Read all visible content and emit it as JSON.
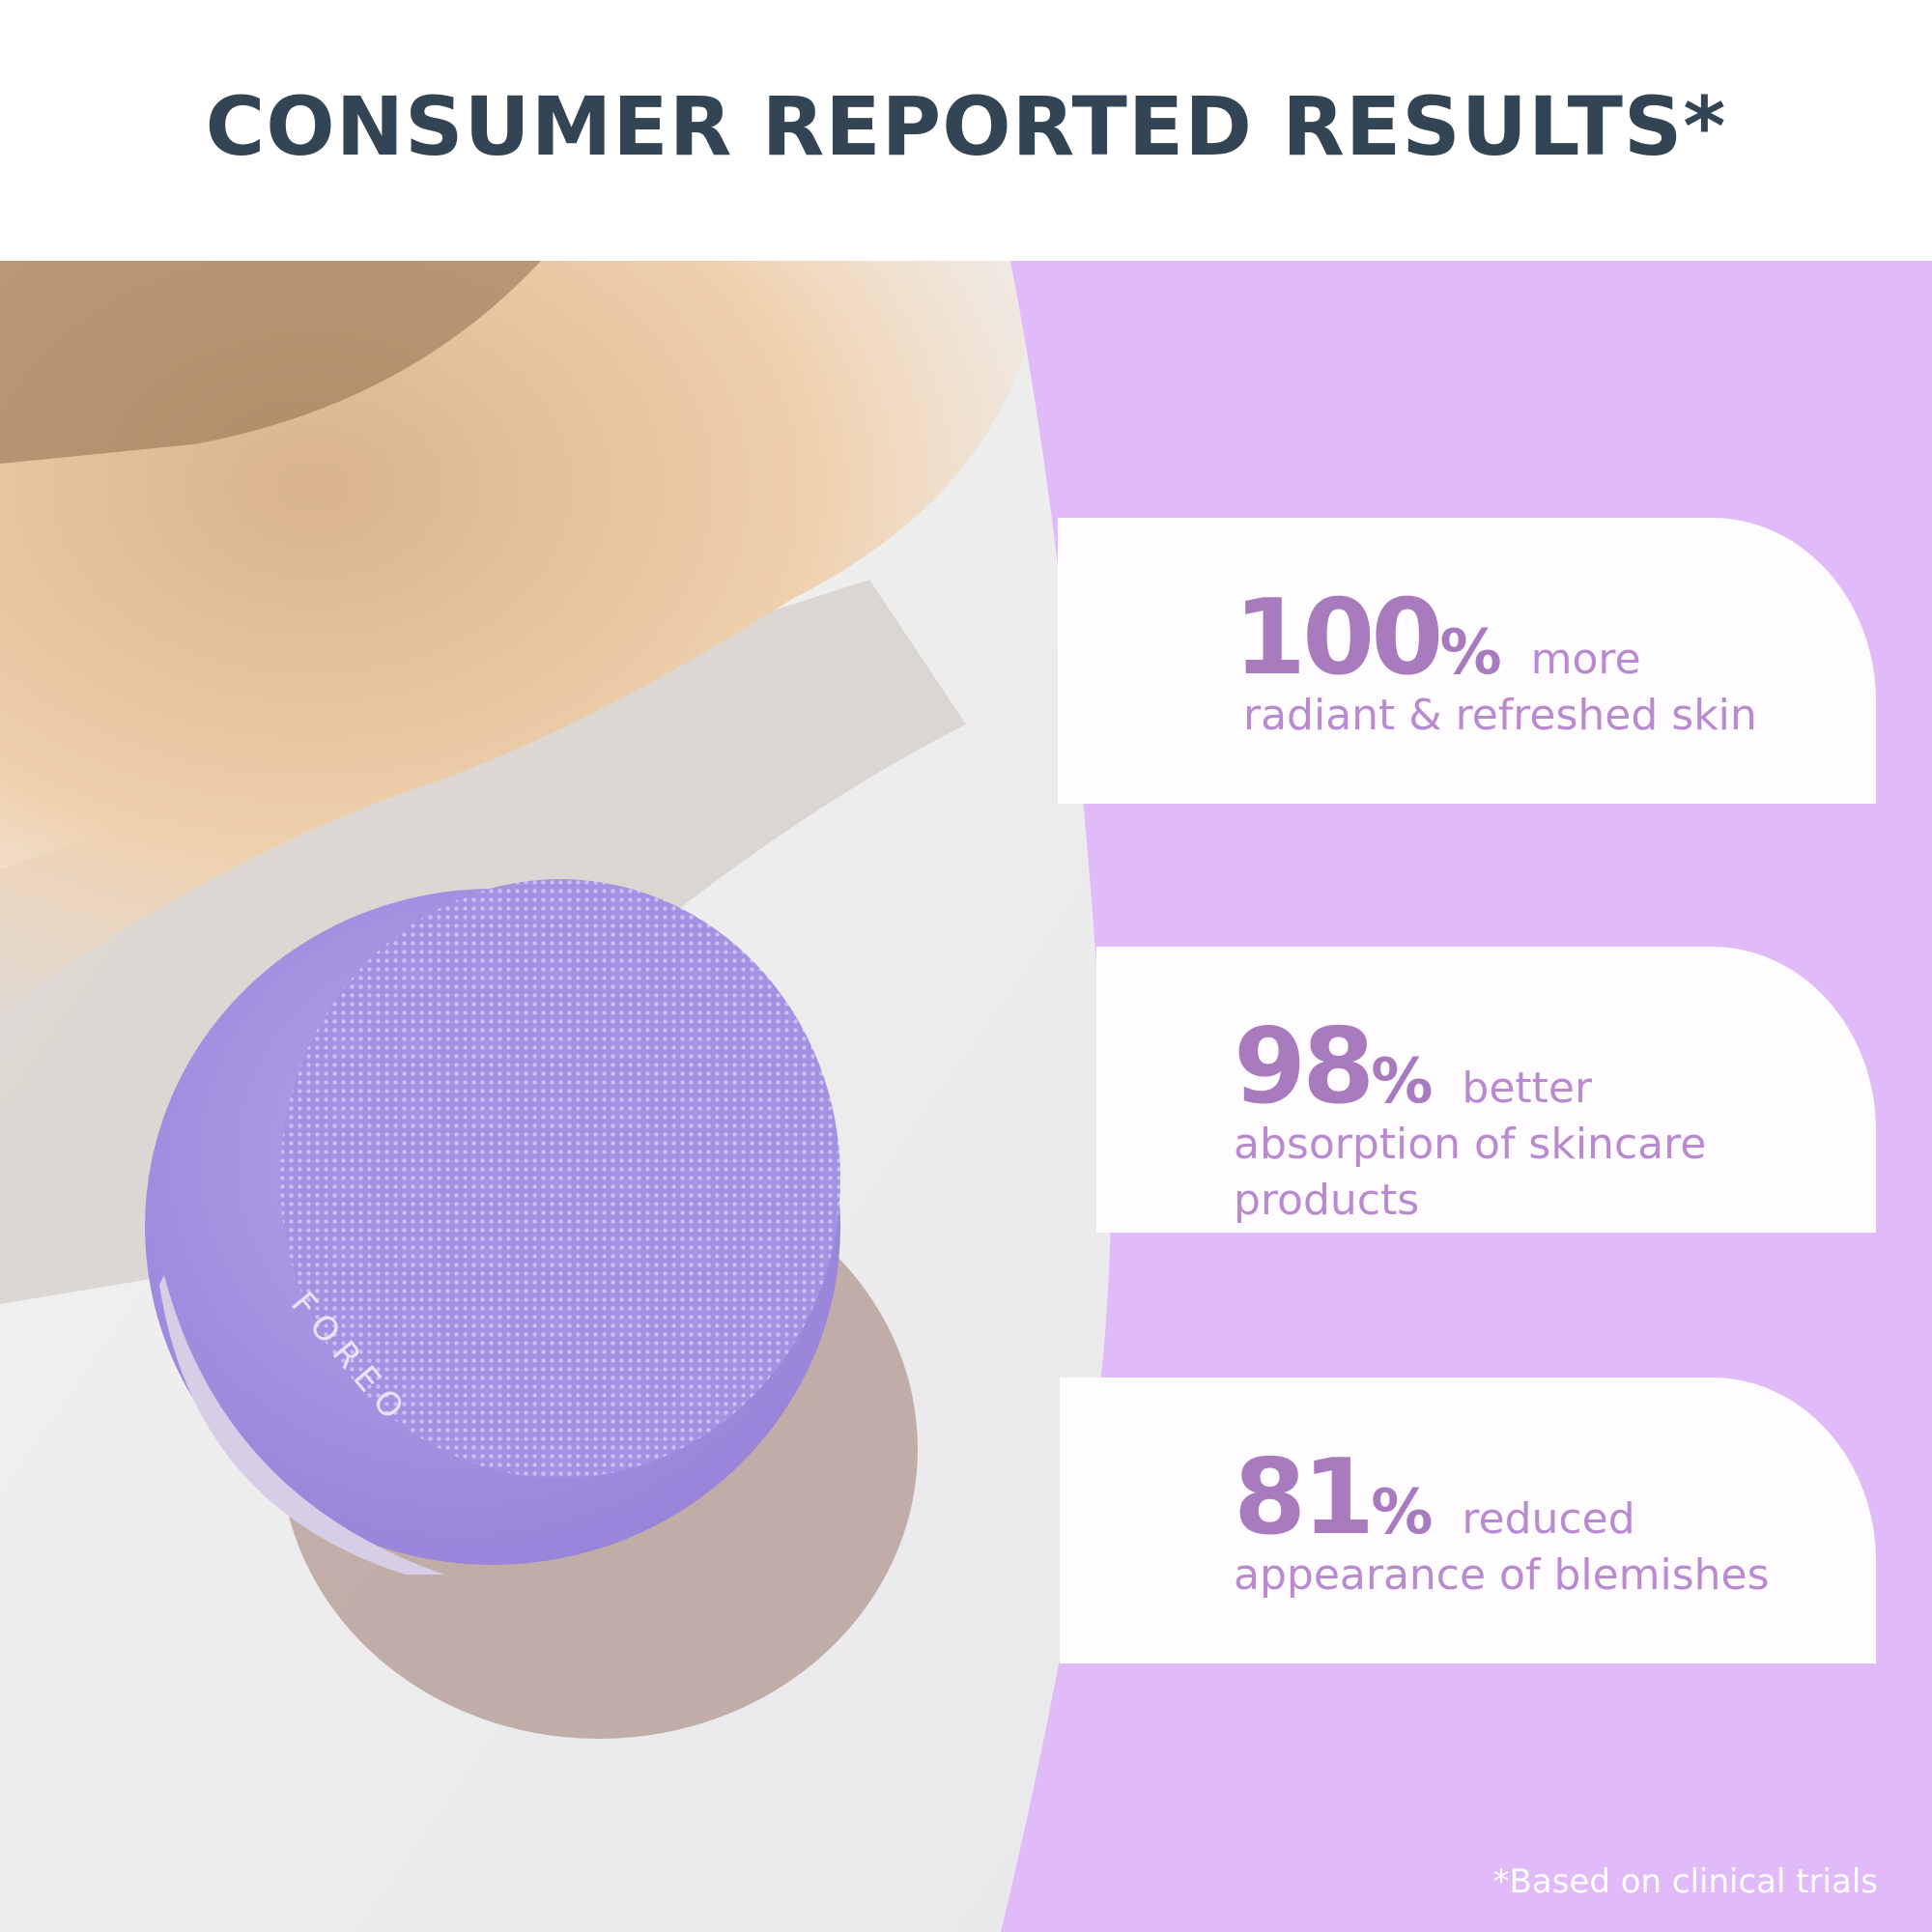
{
  "header": {
    "title": "CONSUMER REPORTED RESULTS*"
  },
  "photo": {
    "brand_logo_text": "FOREO",
    "device_color": "#b8a9e6"
  },
  "colors": {
    "panel": "#e0baf9",
    "card": "#fefcff",
    "accent": "#a87bbf",
    "title": "#334554"
  },
  "results": [
    {
      "value": "100",
      "unit": "%",
      "lead": "more",
      "description": "radiant & refreshed skin"
    },
    {
      "value": "98",
      "unit": "%",
      "lead": "better",
      "description": "absorption of skincare products"
    },
    {
      "value": "81",
      "unit": "%",
      "lead": "reduced",
      "description": "appearance of blemishes"
    }
  ],
  "footnote": "*Based on clinical trials"
}
